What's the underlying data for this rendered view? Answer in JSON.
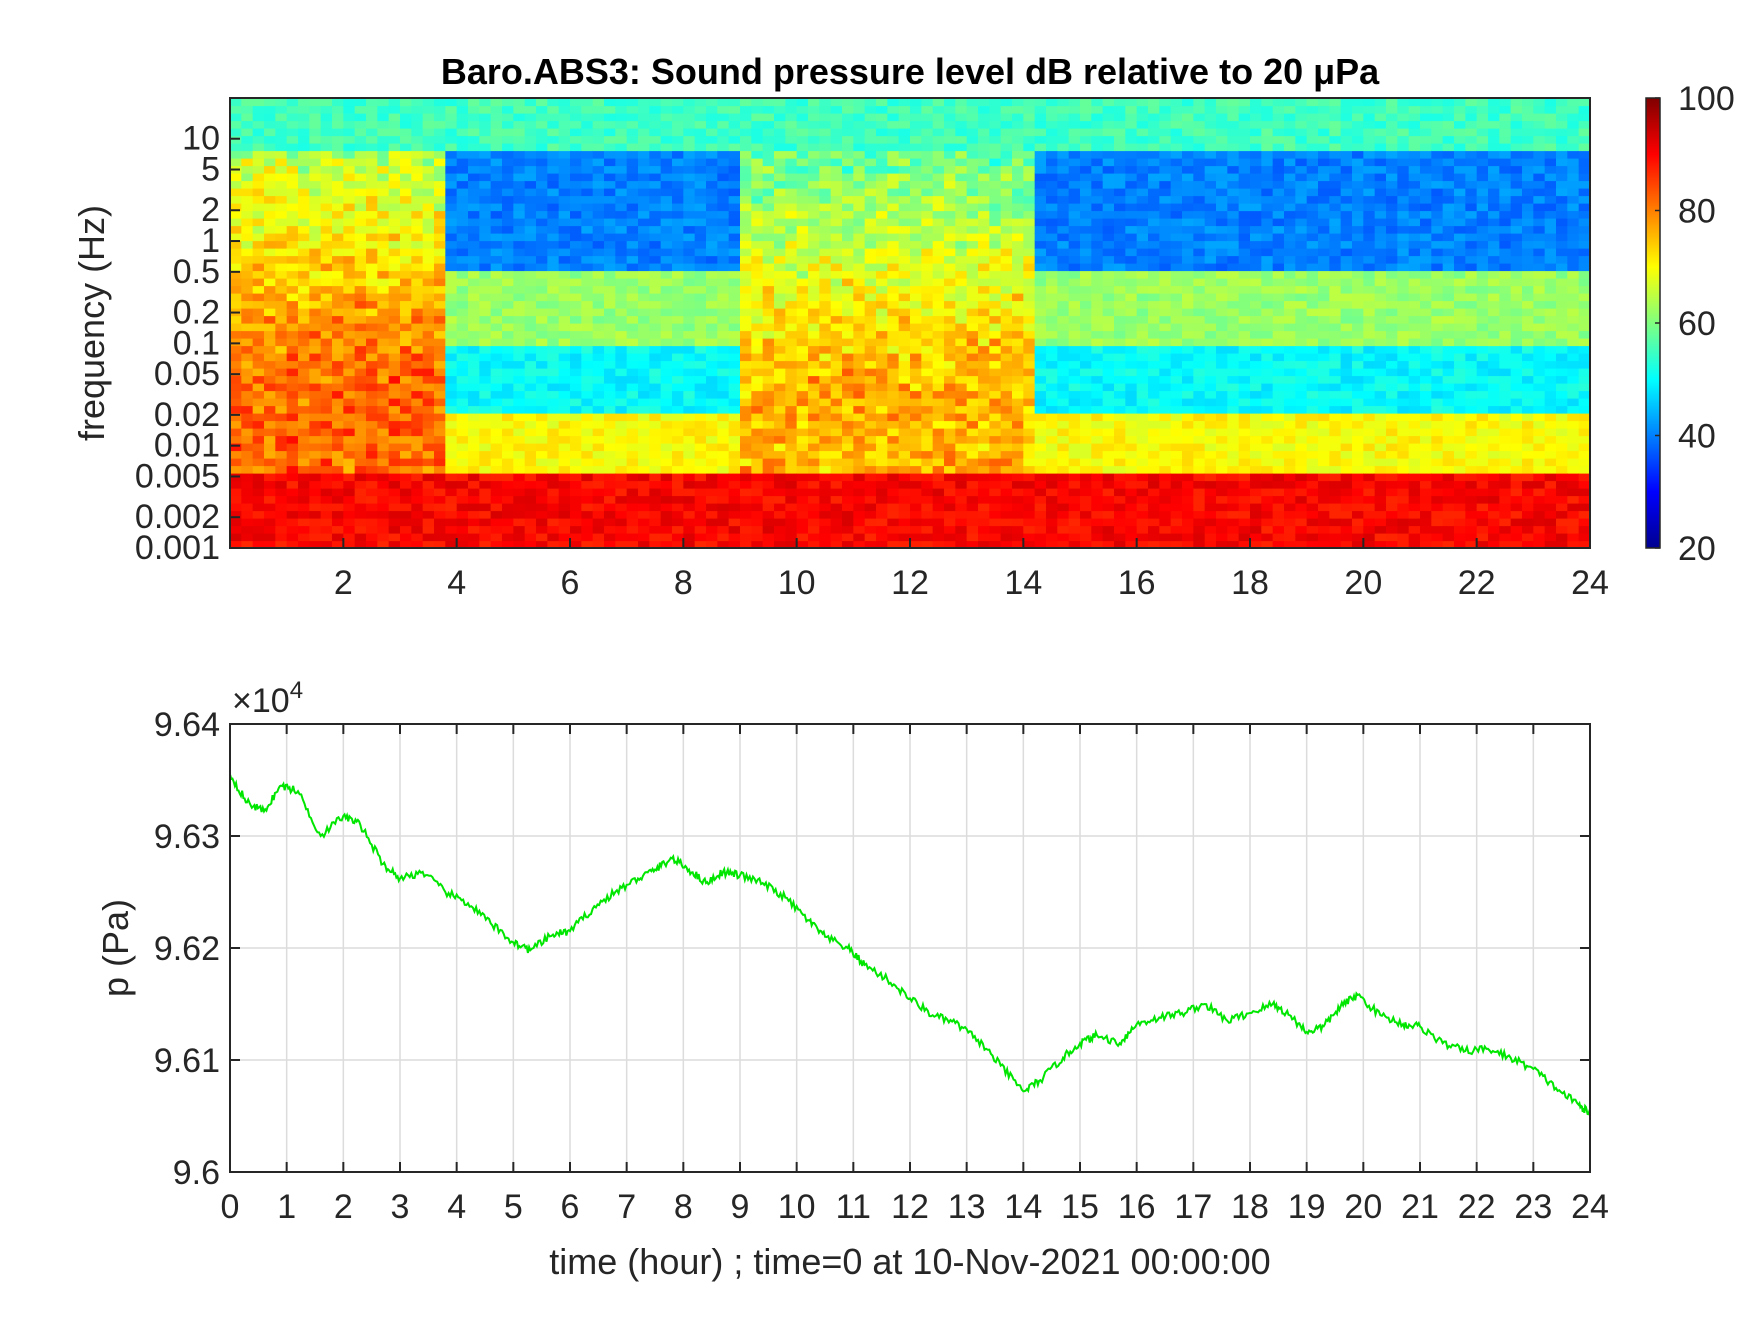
{
  "chart_data": [
    {
      "type": "heatmap",
      "title": "Baro.ABS3: Sound pressure level dB relative to 20 μPa",
      "xlabel": "",
      "ylabel": "frequency (Hz)",
      "xlim": [
        0,
        24
      ],
      "x_ticks": [
        2,
        4,
        6,
        8,
        10,
        12,
        14,
        16,
        18,
        20,
        22,
        24
      ],
      "y_scale": "log",
      "ylim": [
        0.001,
        25
      ],
      "y_ticks": [
        {
          "value": 0.001,
          "label": "0.001"
        },
        {
          "value": 0.002,
          "label": "0.002"
        },
        {
          "value": 0.005,
          "label": "0.005"
        },
        {
          "value": 0.01,
          "label": "0.01"
        },
        {
          "value": 0.02,
          "label": "0.02"
        },
        {
          "value": 0.05,
          "label": "0.05"
        },
        {
          "value": 0.1,
          "label": "0.1"
        },
        {
          "value": 0.2,
          "label": "0.2"
        },
        {
          "value": 0.5,
          "label": "0.5"
        },
        {
          "value": 1,
          "label": "1"
        },
        {
          "value": 2,
          "label": "2"
        },
        {
          "value": 5,
          "label": "5"
        },
        {
          "value": 10,
          "label": "10"
        }
      ],
      "colorbar": {
        "colormap": "jet",
        "clim": [
          20,
          100
        ],
        "ticks": [
          20,
          40,
          60,
          80,
          100
        ]
      },
      "bands": [
        {
          "f_range": [
            0.001,
            0.005
          ],
          "level_db": 90
        },
        {
          "f_range": [
            0.005,
            0.02
          ],
          "level_db": 70
        },
        {
          "f_range": [
            0.02,
            0.1
          ],
          "level_db": 50
        },
        {
          "f_range": [
            0.1,
            0.5
          ],
          "level_db": 62
        },
        {
          "f_range": [
            0.5,
            8
          ],
          "level_db": 40
        },
        {
          "f_range": [
            8,
            25
          ],
          "level_db": 55
        }
      ],
      "activity_periods": [
        {
          "t_range": [
            0,
            3.8
          ],
          "level_db": 82
        },
        {
          "t_range": [
            9,
            14.2
          ],
          "level_db": 76
        }
      ]
    },
    {
      "type": "line",
      "title": "",
      "xlabel": "time (hour) ; time=0 at 10-Nov-2021 00:00:00",
      "ylabel": "p (Pa)",
      "y_exponent_label": "×10",
      "y_exponent": "4",
      "xlim": [
        0,
        24
      ],
      "ylim": [
        96000,
        96400
      ],
      "x_ticks": [
        0,
        1,
        2,
        3,
        4,
        5,
        6,
        7,
        8,
        9,
        10,
        11,
        12,
        13,
        14,
        15,
        16,
        17,
        18,
        19,
        20,
        21,
        22,
        23,
        24
      ],
      "y_ticks": [
        {
          "value": 96000,
          "label": "9.6"
        },
        {
          "value": 96100,
          "label": "9.61"
        },
        {
          "value": 96200,
          "label": "9.62"
        },
        {
          "value": 96300,
          "label": "9.63"
        },
        {
          "value": 96400,
          "label": "9.64"
        }
      ],
      "grid": true,
      "line_color": "#00e600",
      "series": [
        {
          "x": [
            0,
            0.3,
            0.6,
            0.9,
            1.2,
            1.6,
            2.0,
            2.3,
            2.7,
            3.0,
            3.4,
            3.8,
            4.2,
            4.6,
            5.0,
            5.3,
            5.7,
            6.0,
            6.4,
            6.8,
            7.2,
            7.5,
            7.8,
            8.1,
            8.4,
            8.7,
            9.0,
            9.4,
            9.8,
            10.2,
            10.5,
            10.9,
            11.2,
            11.6,
            12.0,
            12.4,
            12.8,
            13.2,
            13.6,
            14.0,
            14.3,
            14.7,
            15.0,
            15.3,
            15.7,
            16.0,
            16.4,
            16.8,
            17.2,
            17.6,
            18.0,
            18.4,
            18.7,
            19.0,
            19.3,
            19.6,
            19.9,
            20.3,
            20.7,
            21.0,
            21.4,
            21.8,
            22.2,
            22.6,
            23.0,
            23.4,
            23.8,
            24.0
          ],
          "y": [
            96355,
            96330,
            96322,
            96345,
            96340,
            96300,
            96318,
            96310,
            96275,
            96262,
            96268,
            96250,
            96240,
            96222,
            96205,
            96198,
            96212,
            96215,
            96235,
            96250,
            96262,
            96270,
            96280,
            96270,
            96258,
            96268,
            96265,
            96258,
            96245,
            96225,
            96210,
            96200,
            96185,
            96172,
            96155,
            96140,
            96133,
            96118,
            96095,
            96072,
            96082,
            96102,
            96115,
            96122,
            96115,
            96132,
            96138,
            96142,
            96150,
            96135,
            96142,
            96150,
            96140,
            96125,
            96130,
            96148,
            96158,
            96140,
            96132,
            96130,
            96115,
            96108,
            96110,
            96102,
            96092,
            96075,
            96060,
            96052
          ]
        }
      ]
    }
  ]
}
